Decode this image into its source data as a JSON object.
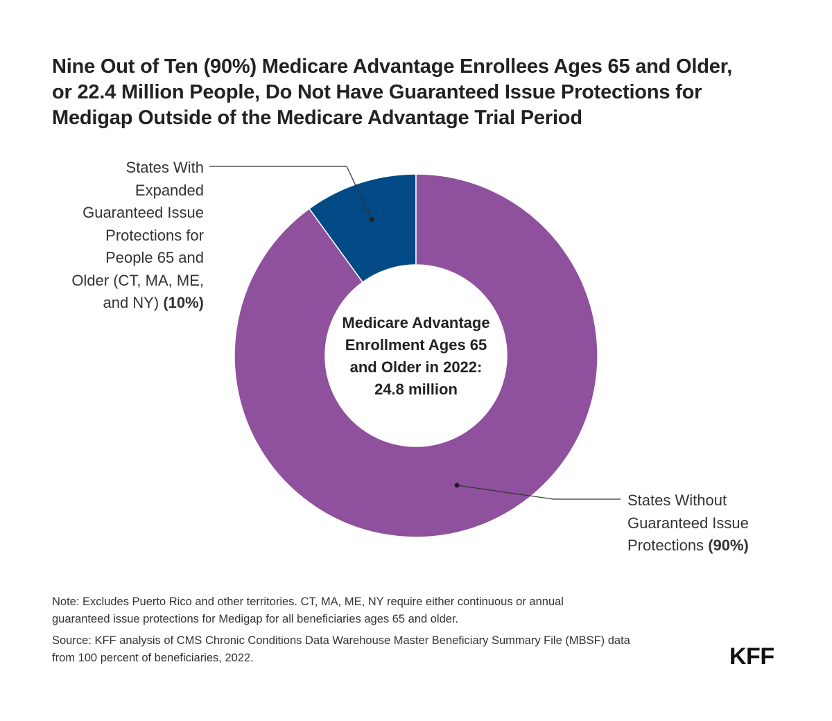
{
  "title_lines": [
    "Nine Out of Ten (90%) Medicare Advantage Enrollees Ages 65 and Older,",
    "or 22.4 Million People, Do Not Have Guaranteed Issue Protections for",
    "Medigap Outside of the Medicare Advantage Trial Period"
  ],
  "chart_data": {
    "type": "pie",
    "donut": true,
    "title": "Nine Out of Ten (90%) Medicare Advantage Enrollees Ages 65 and Older, or 22.4 Million People, Do Not Have Guaranteed Issue Protections for Medigap Outside of the Medicare Advantage Trial Period",
    "center_label_lines": [
      "Medicare Advantage",
      "Enrollment Ages 65",
      "and Older in 2022:",
      "24.8 million"
    ],
    "slices": [
      {
        "label_lines": [
          "States With",
          "Expanded",
          "Guaranteed Issue",
          "Protections for",
          "People 65 and",
          "Older (CT, MA, ME,",
          "and NY)"
        ],
        "percent_label": "(10%)",
        "value": 10,
        "color": "#024a86"
      },
      {
        "label_lines": [
          "States Without",
          "Guaranteed Issue",
          "Protections"
        ],
        "percent_label": "(90%)",
        "value": 90,
        "color": "#8f509d"
      }
    ]
  },
  "notes": {
    "note_lines": [
      "Note: Excludes Puerto Rico and other territories. CT, MA, ME, NY require either continuous or annual",
      "guaranteed issue protections for Medigap for all beneficiaries ages 65 and older."
    ],
    "source_lines": [
      "Source: KFF analysis of CMS Chronic Conditions Data Warehouse Master Beneficiary Summary File (MBSF) data",
      "from 100 percent of beneficiaries, 2022."
    ]
  },
  "logo_text": "KFF"
}
